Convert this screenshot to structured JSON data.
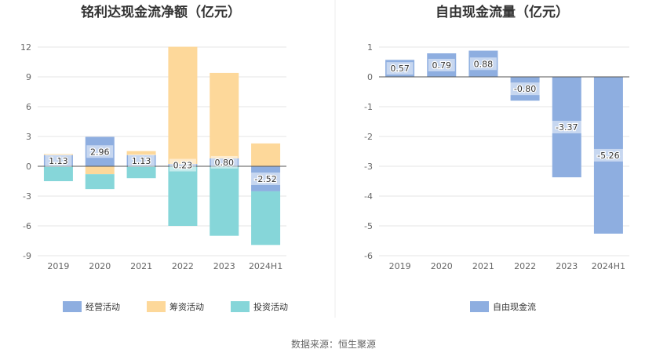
{
  "source_note": "数据来源：恒生聚源",
  "chart_data": [
    {
      "type": "bar",
      "stacked": true,
      "title": "铭利达现金流净额（亿元）",
      "categories": [
        "2019",
        "2020",
        "2021",
        "2022",
        "2023",
        "2024H1"
      ],
      "ylim": [
        -9,
        12
      ],
      "yticks": [
        12,
        9,
        6,
        3,
        0,
        -3,
        -6,
        -9
      ],
      "grid": true,
      "legend_position": "bottom",
      "series": [
        {
          "name": "经营活动",
          "color": "#8eaee0",
          "values": [
            1.13,
            2.96,
            1.13,
            0.23,
            0.8,
            -2.52
          ],
          "labeled": true
        },
        {
          "name": "筹资活动",
          "color": "#fdd89a",
          "values": [
            0.1,
            -0.8,
            0.4,
            11.8,
            8.6,
            2.3
          ],
          "labeled": false
        },
        {
          "name": "投资活动",
          "color": "#86d6d9",
          "values": [
            -1.5,
            -1.5,
            -1.2,
            -6.0,
            -7.0,
            -5.4
          ],
          "labeled": false
        }
      ],
      "data_labels": [
        "1.13",
        "2.96",
        "1.13",
        "0.23",
        "0.80",
        "-2.52"
      ]
    },
    {
      "type": "bar",
      "title": "自由现金流量（亿元）",
      "categories": [
        "2019",
        "2020",
        "2021",
        "2022",
        "2023",
        "2024H1"
      ],
      "ylim": [
        -6,
        1
      ],
      "yticks": [
        1,
        0,
        -1,
        -2,
        -3,
        -4,
        -5,
        -6
      ],
      "grid": true,
      "legend_position": "bottom",
      "series": [
        {
          "name": "自由现金流",
          "color": "#8eaee0",
          "values": [
            0.57,
            0.79,
            0.88,
            -0.8,
            -3.37,
            -5.26
          ]
        }
      ],
      "data_labels": [
        "0.57",
        "0.79",
        "0.88",
        "-0.80",
        "-3.37",
        "-5.26"
      ]
    }
  ]
}
